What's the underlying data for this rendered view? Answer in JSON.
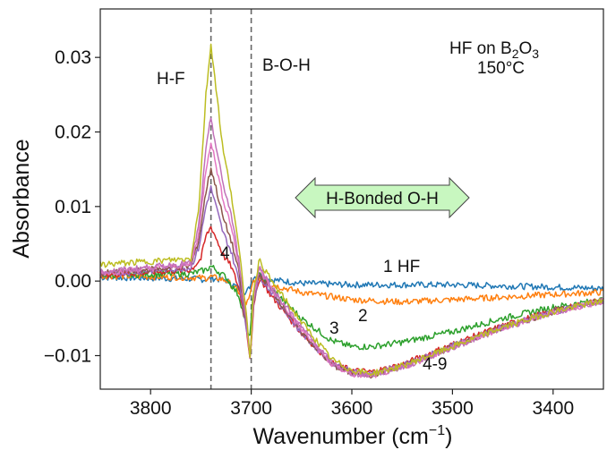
{
  "chart_data": {
    "type": "line",
    "title": "",
    "xlabel": "Wavenumber (cm",
    "xlabel_sup": "−1",
    "xlabel_close": ")",
    "ylabel": "Absorbance",
    "xlim": [
      3850,
      3350
    ],
    "ylim": [
      -0.0145,
      0.0365
    ],
    "x_reversed": true,
    "grid": false,
    "x_ticks": [
      3800,
      3700,
      3600,
      3500,
      3400
    ],
    "y_ticks": [
      -0.01,
      0.0,
      0.01,
      0.02,
      0.03
    ],
    "y_tick_labels": [
      "−0.01",
      "0.00",
      "0.01",
      "0.02",
      "0.03"
    ],
    "vlines": [
      3740,
      3700
    ],
    "annotations": {
      "hf_label": "H-F",
      "boh_label": "B-O-H",
      "sample_prefix": "HF on B",
      "sample_sub1": "2",
      "sample_mid": "O",
      "sample_sub2": "3",
      "temperature": "150°C",
      "hbonded": "H-Bonded O-H",
      "label_1hf": "1 HF",
      "label_2": "2",
      "label_3": "3",
      "label_4": "4",
      "label_4to9": "4-9"
    },
    "colors": {
      "s1": "#1f77b4",
      "s2": "#ff7f0e",
      "s3": "#2ca02c",
      "s4": "#d62728",
      "s5": "#9467bd",
      "s6": "#8c564b",
      "s7": "#e377c2",
      "s8": "#c071b8",
      "s9": "#bcbd22",
      "arrow_fill": "#c8f7c0",
      "vline": "#666666"
    },
    "series": [
      {
        "key": "s1",
        "x": [
          3850,
          3760,
          3745,
          3740,
          3735,
          3725,
          3712,
          3705,
          3702,
          3698,
          3692,
          3680,
          3650,
          3600,
          3500,
          3400,
          3350
        ],
        "y": [
          0.0005,
          0.0003,
          0.0002,
          0.0004,
          0.0003,
          0.0001,
          -0.001,
          -0.0015,
          -0.001,
          0.0005,
          0.0008,
          0.0002,
          -0.0003,
          -0.0005,
          -0.0005,
          -0.0008,
          -0.001
        ]
      },
      {
        "key": "s2",
        "x": [
          3850,
          3760,
          3745,
          3740,
          3735,
          3725,
          3712,
          3705,
          3702,
          3698,
          3692,
          3680,
          3650,
          3600,
          3550,
          3500,
          3400,
          3350
        ],
        "y": [
          0.0007,
          0.0005,
          0.0004,
          0.0006,
          0.0004,
          0.0001,
          -0.0015,
          -0.003,
          -0.0025,
          0.0,
          0.0005,
          -0.0005,
          -0.0015,
          -0.0025,
          -0.0028,
          -0.0025,
          -0.0018,
          -0.0015
        ]
      },
      {
        "key": "s3",
        "x": [
          3850,
          3760,
          3745,
          3740,
          3735,
          3725,
          3712,
          3705,
          3702,
          3698,
          3692,
          3680,
          3650,
          3620,
          3600,
          3580,
          3550,
          3500,
          3450,
          3400,
          3350
        ],
        "y": [
          0.0008,
          0.001,
          0.0015,
          0.002,
          0.0015,
          0.0005,
          -0.002,
          -0.006,
          -0.008,
          -0.002,
          0.001,
          -0.001,
          -0.005,
          -0.008,
          -0.0088,
          -0.0088,
          -0.0082,
          -0.0068,
          -0.005,
          -0.0035,
          -0.0025
        ]
      },
      {
        "key": "s4",
        "x": [
          3850,
          3760,
          3750,
          3745,
          3740,
          3735,
          3728,
          3720,
          3712,
          3705,
          3701,
          3698,
          3692,
          3680,
          3650,
          3620,
          3600,
          3580,
          3550,
          3500,
          3450,
          3400,
          3350
        ],
        "y": [
          0.0008,
          0.0015,
          0.003,
          0.006,
          0.0073,
          0.0058,
          0.0035,
          0.002,
          -0.001,
          -0.006,
          -0.0105,
          -0.004,
          0.0005,
          -0.002,
          -0.007,
          -0.011,
          -0.012,
          -0.0122,
          -0.0112,
          -0.0085,
          -0.006,
          -0.004,
          -0.0025
        ]
      },
      {
        "key": "s5",
        "x": [
          3850,
          3760,
          3752,
          3745,
          3740,
          3735,
          3728,
          3720,
          3712,
          3705,
          3701,
          3698,
          3692,
          3680,
          3650,
          3620,
          3600,
          3580,
          3550,
          3500,
          3450,
          3400,
          3350
        ],
        "y": [
          0.0009,
          0.0018,
          0.0045,
          0.01,
          0.0125,
          0.01,
          0.0065,
          0.004,
          0.0,
          -0.006,
          -0.0105,
          -0.003,
          0.0008,
          -0.0015,
          -0.007,
          -0.011,
          -0.0122,
          -0.0124,
          -0.0114,
          -0.0087,
          -0.0062,
          -0.0041,
          -0.0026
        ]
      },
      {
        "key": "s6",
        "x": [
          3850,
          3760,
          3752,
          3745,
          3740,
          3735,
          3728,
          3720,
          3712,
          3705,
          3701,
          3698,
          3692,
          3680,
          3650,
          3620,
          3600,
          3580,
          3550,
          3500,
          3450,
          3400,
          3350
        ],
        "y": [
          0.001,
          0.002,
          0.0055,
          0.012,
          0.0152,
          0.0125,
          0.0085,
          0.0055,
          0.001,
          -0.0055,
          -0.0105,
          -0.003,
          0.001,
          -0.0012,
          -0.0068,
          -0.0112,
          -0.0124,
          -0.0126,
          -0.0115,
          -0.0088,
          -0.0062,
          -0.0041,
          -0.0026
        ]
      },
      {
        "key": "s7",
        "x": [
          3850,
          3760,
          3752,
          3745,
          3740,
          3735,
          3728,
          3720,
          3712,
          3705,
          3701,
          3698,
          3692,
          3680,
          3650,
          3620,
          3600,
          3580,
          3550,
          3500,
          3450,
          3400,
          3350
        ],
        "y": [
          0.0011,
          0.0022,
          0.0065,
          0.015,
          0.0188,
          0.0155,
          0.011,
          0.0075,
          0.002,
          -0.005,
          -0.0105,
          -0.0025,
          0.0015,
          -0.001,
          -0.0065,
          -0.0112,
          -0.0125,
          -0.0127,
          -0.0116,
          -0.0089,
          -0.0063,
          -0.0042,
          -0.0027
        ]
      },
      {
        "key": "s8",
        "x": [
          3850,
          3760,
          3752,
          3745,
          3740,
          3735,
          3728,
          3720,
          3712,
          3705,
          3701,
          3698,
          3692,
          3680,
          3650,
          3620,
          3600,
          3580,
          3550,
          3500,
          3450,
          3400,
          3350
        ],
        "y": [
          0.0012,
          0.0024,
          0.0075,
          0.0175,
          0.022,
          0.018,
          0.013,
          0.009,
          0.0025,
          -0.0045,
          -0.0105,
          -0.002,
          0.002,
          -0.0008,
          -0.0062,
          -0.011,
          -0.0124,
          -0.0126,
          -0.0116,
          -0.0089,
          -0.0063,
          -0.0042,
          -0.0027
        ]
      },
      {
        "key": "s9",
        "x": [
          3850,
          3760,
          3752,
          3745,
          3740,
          3735,
          3728,
          3720,
          3712,
          3705,
          3701,
          3698,
          3692,
          3680,
          3650,
          3620,
          3600,
          3580,
          3550,
          3500,
          3450,
          3400,
          3350
        ],
        "y": [
          0.0022,
          0.003,
          0.01,
          0.025,
          0.0318,
          0.026,
          0.0175,
          0.012,
          0.004,
          -0.004,
          -0.0105,
          -0.0015,
          0.0028,
          0.0,
          -0.0055,
          -0.0105,
          -0.012,
          -0.0124,
          -0.0114,
          -0.0088,
          -0.0062,
          -0.0041,
          -0.0026
        ]
      }
    ]
  }
}
